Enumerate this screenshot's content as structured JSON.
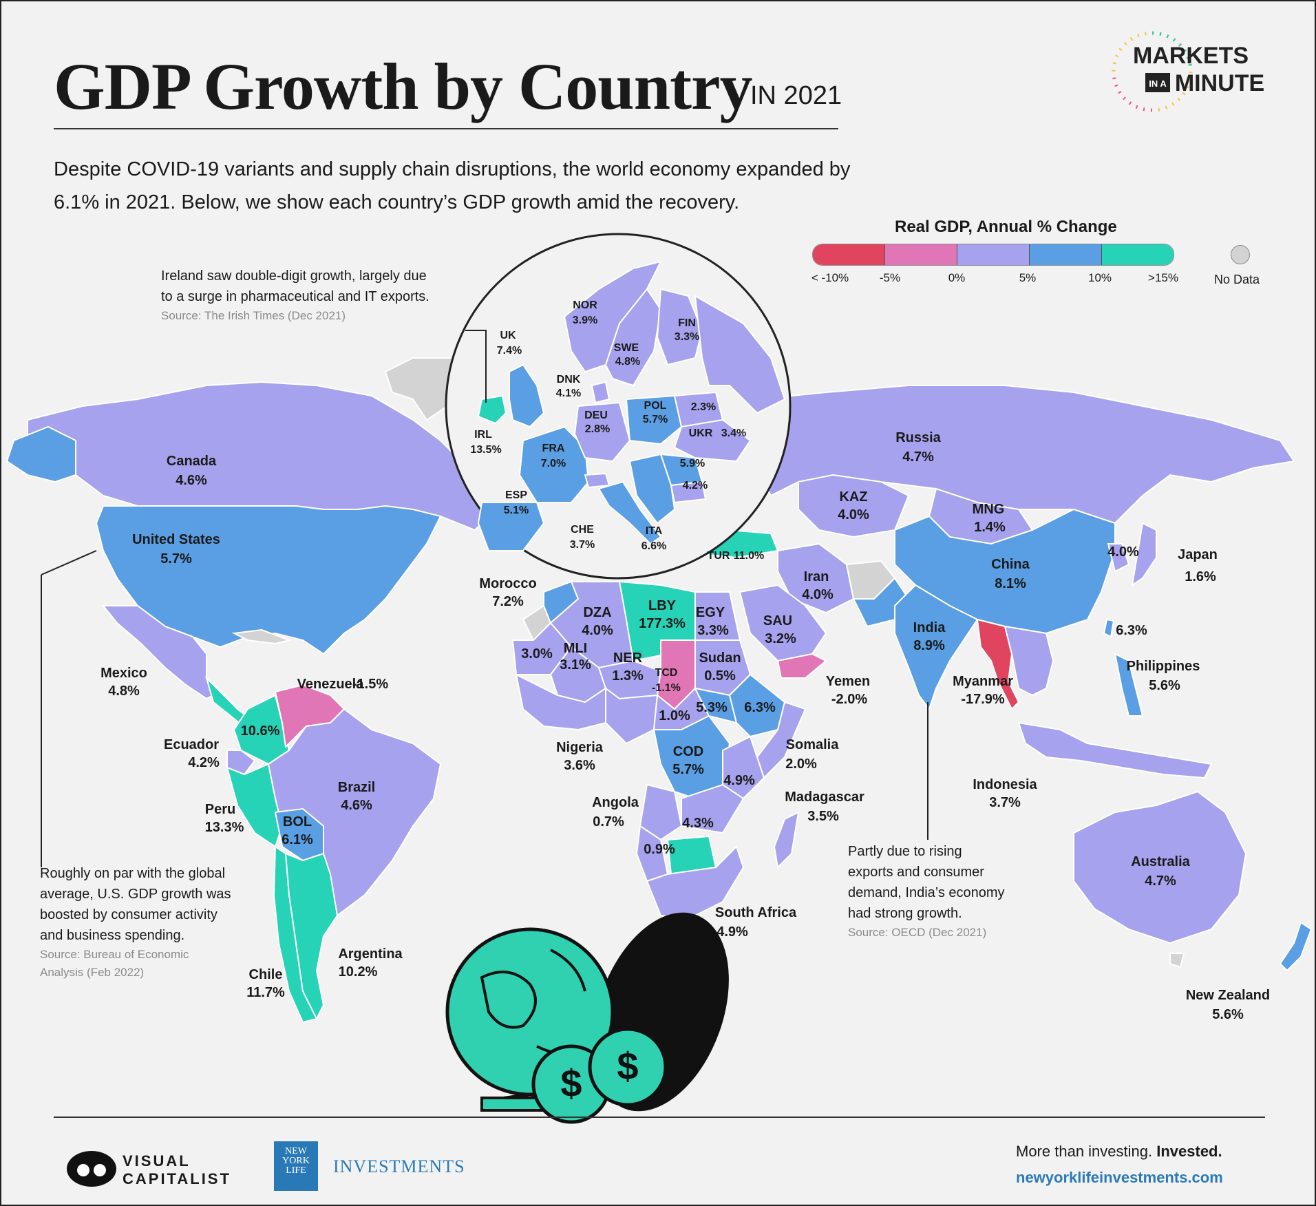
{
  "header": {
    "title": "GDP Growth by Country",
    "title_suffix": "IN 2021",
    "intro": "Despite COVID-19 variants and supply chain disruptions, the world economy expanded by 6.1% in 2021. Below, we show each country’s GDP growth amid the recovery."
  },
  "brand": {
    "series_line1": "MARKETS",
    "series_in_a": "IN A",
    "series_line2": "MINUTE",
    "publisher": "VISUAL CAPITALIST",
    "publisher_line1": "VISUAL",
    "publisher_line2": "CAPITALIST",
    "partner": "NEW YORK LIFE",
    "partner_l1": "NEW",
    "partner_l2": "YORK",
    "partner_l3": "LIFE",
    "partner_product": "INVESTMENTS",
    "tagline_plain": "More than investing.",
    "tagline_bold": "Invested.",
    "website": "newyorklifeinvestments.com"
  },
  "legend": {
    "title": "Real GDP, Annual % Change",
    "ticks": [
      "< -10%",
      "-5%",
      "0%",
      "5%",
      "10%",
      ">15%"
    ],
    "colors": [
      "#e0445f",
      "#e176b6",
      "#a7a2ee",
      "#5a9fe3",
      "#26d3b6"
    ],
    "no_data_label": "No Data",
    "no_data_color": "#d3d3d3"
  },
  "notes": {
    "ireland_1": "Ireland saw double-digit growth, largely due",
    "ireland_2": "to a surge in pharmaceutical and IT exports.",
    "ireland_source": "Source: The Irish Times (Dec 2021)",
    "us_1": "Roughly on par with the global",
    "us_2": "average, U.S. GDP growth was",
    "us_3": "boosted by consumer activity",
    "us_4": "and business spending.",
    "us_source_1": "Source: Bureau of Economic",
    "us_source_2": "Analysis (Feb 2022)",
    "india_1": "Partly due to rising",
    "india_2": "exports and consumer",
    "india_3": "demand, India’s economy",
    "india_4": "had strong growth.",
    "india_source": "Source: OECD (Dec 2021)"
  },
  "countries": {
    "canada": {
      "name": "Canada",
      "value": "4.6%",
      "growth": 4.6
    },
    "united_states": {
      "name": "United States",
      "value": "5.7%",
      "growth": 5.7
    },
    "mexico": {
      "name": "Mexico",
      "value": "4.8%",
      "growth": 4.8
    },
    "venezuela": {
      "name": "Venezuela",
      "value": "-1.5%",
      "growth": -1.5
    },
    "colombia": {
      "name": "",
      "value": "10.6%",
      "growth": 10.6
    },
    "ecuador": {
      "name": "Ecuador",
      "value": "4.2%",
      "growth": 4.2
    },
    "peru": {
      "name": "Peru",
      "value": "13.3%",
      "growth": 13.3
    },
    "brazil": {
      "name": "Brazil",
      "value": "4.6%",
      "growth": 4.6
    },
    "bolivia": {
      "name": "BOL",
      "value": "6.1%",
      "growth": 6.1
    },
    "chile": {
      "name": "Chile",
      "value": "11.7%",
      "growth": 11.7
    },
    "argentina": {
      "name": "Argentina",
      "value": "10.2%",
      "growth": 10.2
    },
    "morocco": {
      "name": "Morocco",
      "value": "7.2%",
      "growth": 7.2
    },
    "algeria": {
      "name": "DZA",
      "value": "4.0%",
      "growth": 4.0
    },
    "libya": {
      "name": "LBY",
      "value": "177.3%",
      "growth": 177.3
    },
    "egypt": {
      "name": "EGY",
      "value": "3.3%",
      "growth": 3.3
    },
    "mauritania": {
      "name": "",
      "value": "3.0%",
      "growth": 3.0
    },
    "mali": {
      "name": "MLI",
      "value": "3.1%",
      "growth": 3.1
    },
    "niger": {
      "name": "NER",
      "value": "1.3%",
      "growth": 1.3
    },
    "chad": {
      "name": "TCD",
      "value": "-1.1%",
      "growth": -1.1
    },
    "sudan": {
      "name": "Sudan",
      "value": "0.5%",
      "growth": 0.5
    },
    "south_sudan": {
      "name": "",
      "value": "5.3%",
      "growth": 5.3
    },
    "ethiopia": {
      "name": "",
      "value": "6.3%",
      "growth": 6.3
    },
    "car": {
      "name": "",
      "value": "1.0%",
      "growth": 1.0
    },
    "nigeria": {
      "name": "Nigeria",
      "value": "3.6%",
      "growth": 3.6
    },
    "drc": {
      "name": "COD",
      "value": "5.7%",
      "growth": 5.7
    },
    "tanzania": {
      "name": "",
      "value": "4.9%",
      "growth": 4.9
    },
    "somalia": {
      "name": "Somalia",
      "value": "2.0%",
      "growth": 2.0
    },
    "angola": {
      "name": "Angola",
      "value": "0.7%",
      "growth": 0.7
    },
    "zambia": {
      "name": "",
      "value": "4.3%",
      "growth": 4.3
    },
    "namibia": {
      "name": "",
      "value": "0.9%",
      "growth": 0.9
    },
    "madagascar": {
      "name": "Madagascar",
      "value": "3.5%",
      "growth": 3.5
    },
    "south_africa": {
      "name": "South Africa",
      "value": "4.9%",
      "growth": 4.9
    },
    "russia": {
      "name": "Russia",
      "value": "4.7%",
      "growth": 4.7
    },
    "kazakhstan": {
      "name": "KAZ",
      "value": "4.0%",
      "growth": 4.0
    },
    "mongolia": {
      "name": "MNG",
      "value": "1.4%",
      "growth": 1.4
    },
    "china": {
      "name": "China",
      "value": "8.1%",
      "growth": 8.1
    },
    "korea": {
      "name": "",
      "value": "4.0%",
      "growth": 4.0
    },
    "japan": {
      "name": "Japan",
      "value": "1.6%",
      "growth": 1.6
    },
    "taiwan": {
      "name": "",
      "value": "6.3%",
      "growth": 6.3
    },
    "philippines": {
      "name": "Philippines",
      "value": "5.6%",
      "growth": 5.6
    },
    "iran": {
      "name": "Iran",
      "value": "4.0%",
      "growth": 4.0
    },
    "turkey": {
      "name": "TUR",
      "value": "11.0%",
      "growth": 11.0
    },
    "saudi_arabia": {
      "name": "SAU",
      "value": "3.2%",
      "growth": 3.2
    },
    "yemen": {
      "name": "Yemen",
      "value": "-2.0%",
      "growth": -2.0
    },
    "india": {
      "name": "India",
      "value": "8.9%",
      "growth": 8.9
    },
    "myanmar": {
      "name": "Myanmar",
      "value": "-17.9%",
      "growth": -17.9
    },
    "indonesia": {
      "name": "Indonesia",
      "value": "3.7%",
      "growth": 3.7
    },
    "australia": {
      "name": "Australia",
      "value": "4.7%",
      "growth": 4.7
    },
    "new_zealand": {
      "name": "New Zealand",
      "value": "5.6%",
      "growth": 5.6
    }
  },
  "europe": {
    "norway": {
      "name": "NOR",
      "value": "3.9%",
      "growth": 3.9
    },
    "finland": {
      "name": "FIN",
      "value": "3.3%",
      "growth": 3.3
    },
    "sweden": {
      "name": "SWE",
      "value": "4.8%",
      "growth": 4.8
    },
    "uk": {
      "name": "UK",
      "value": "7.4%",
      "growth": 7.4
    },
    "denmark": {
      "name": "DNK",
      "value": "4.1%",
      "growth": 4.1
    },
    "poland": {
      "name": "POL",
      "value": "5.7%",
      "growth": 5.7
    },
    "belarus": {
      "name": "",
      "value": "2.3%",
      "growth": 2.3
    },
    "ireland": {
      "name": "IRL",
      "value": "13.5%",
      "growth": 13.5
    },
    "germany": {
      "name": "DEU",
      "value": "2.8%",
      "growth": 2.8
    },
    "ukraine": {
      "name": "UKR",
      "value": "3.4%",
      "growth": 3.4
    },
    "france": {
      "name": "FRA",
      "value": "7.0%",
      "growth": 7.0
    },
    "romania": {
      "name": "",
      "value": "5.9%",
      "growth": 5.9
    },
    "bulgaria": {
      "name": "",
      "value": "4.2%",
      "growth": 4.2
    },
    "spain": {
      "name": "ESP",
      "value": "5.1%",
      "growth": 5.1
    },
    "switzerland": {
      "name": "CHE",
      "value": "3.7%",
      "growth": 3.7
    },
    "italy": {
      "name": "ITA",
      "value": "6.6%",
      "growth": 6.6
    }
  }
}
